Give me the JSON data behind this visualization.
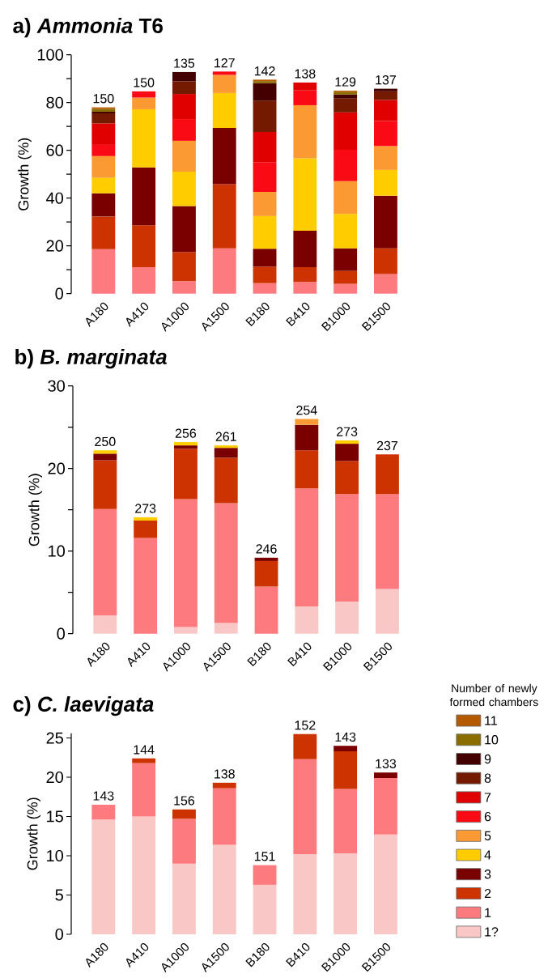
{
  "chart_data": [
    {
      "type": "bar",
      "stacked": true,
      "title": "a) *Ammonia* T6",
      "ylabel": "Growth (%)",
      "legend": false,
      "categories": [
        "A180",
        "A410",
        "A1000",
        "A1500",
        "B180",
        "B410",
        "B1000",
        "B1500"
      ],
      "ylim": [
        0,
        100
      ],
      "yticks": [
        0,
        {
          "value": 10,
          "label": null
        },
        20,
        {
          "value": 30,
          "label": null
        },
        40,
        {
          "value": 50,
          "label": null
        },
        60,
        {
          "value": 70,
          "label": null
        },
        80,
        {
          "value": 90,
          "label": null
        },
        100
      ],
      "series": [
        {
          "color": "#fd7a7f",
          "values": [
            18.6,
            11.1,
            5.2,
            19.0,
            4.4,
            4.9,
            4.1,
            8.2
          ]
        },
        {
          "color": "#cc3300",
          "values": [
            13.7,
            17.5,
            12.2,
            26.8,
            6.9,
            6.2,
            5.4,
            10.8
          ]
        },
        {
          "color": "#7a0000",
          "values": [
            9.7,
            24.3,
            19.3,
            23.6,
            7.5,
            15.2,
            9.5,
            22.0
          ]
        },
        {
          "color": "#ffcc00",
          "values": [
            6.5,
            24.3,
            14.4,
            14.6,
            13.7,
            30.4,
            14.4,
            10.8
          ]
        },
        {
          "color": "#fb9933",
          "values": [
            9.1,
            4.9,
            12.9,
            7.6,
            10.1,
            22.2,
            13.7,
            10.0
          ]
        },
        {
          "color": "#fa0a14",
          "values": [
            4.7,
            2.6,
            9.1,
            1.4,
            12.5,
            6.2,
            13.1,
            10.5
          ]
        },
        {
          "color": "#e10000",
          "values": [
            9.0,
            null,
            10.5,
            null,
            12.6,
            3.3,
            15.7,
            8.8
          ]
        },
        {
          "color": "#731a00",
          "values": [
            4.2,
            null,
            5.3,
            null,
            13.1,
            null,
            5.8,
            3.6
          ]
        },
        {
          "color": "#440000",
          "values": [
            0.7,
            null,
            3.9,
            null,
            7.3,
            null,
            1.7,
            1.1
          ]
        },
        {
          "color": "#8a6d00",
          "values": [
            1.1,
            null,
            null,
            null,
            0.9,
            null,
            1.0,
            null
          ]
        },
        {
          "color": "#b45a00",
          "values": [
            0.7,
            null,
            null,
            null,
            0.6,
            null,
            0.6,
            null
          ]
        }
      ],
      "annotations": [
        {
          "text": "150",
          "x": "A180",
          "y": 78.0
        },
        {
          "text": "150",
          "x": "A410",
          "y": 84.7
        },
        {
          "text": "135",
          "x": "A1000",
          "y": 92.8
        },
        {
          "text": "127",
          "x": "A1500",
          "y": 93.0
        },
        {
          "text": "142",
          "x": "B180",
          "y": 89.6
        },
        {
          "text": "138",
          "x": "B410",
          "y": 88.4
        },
        {
          "text": "129",
          "x": "B1000",
          "y": 85.0
        },
        {
          "text": "137",
          "x": "B1500",
          "y": 85.8
        }
      ]
    },
    {
      "type": "bar",
      "stacked": true,
      "title": "b) *B. marginata*",
      "ylabel": "Growth (%)",
      "legend": false,
      "categories": [
        "A180",
        "A410",
        "A1000",
        "A1500",
        "B180",
        "B410",
        "B1000",
        "B1500"
      ],
      "ylim": [
        0,
        30
      ],
      "yticks": [
        0,
        {
          "value": 5,
          "label": null
        },
        10,
        {
          "value": 15,
          "label": null
        },
        20,
        {
          "value": 25,
          "label": null
        },
        30
      ],
      "series": [
        {
          "color": "#f9c8c6",
          "values": [
            2.2,
            null,
            0.8,
            1.3,
            null,
            3.3,
            3.9,
            5.4
          ]
        },
        {
          "color": "#fd7a7f",
          "values": [
            12.9,
            11.6,
            15.5,
            14.5,
            5.7,
            14.3,
            13.0,
            11.5
          ]
        },
        {
          "color": "#cc3300",
          "values": [
            5.9,
            2.1,
            6.1,
            5.5,
            3.1,
            4.6,
            4.0,
            4.8
          ]
        },
        {
          "color": "#7a0000",
          "values": [
            0.8,
            null,
            0.4,
            1.2,
            0.4,
            3.1,
            2.1,
            null
          ]
        },
        {
          "color": "#ffcc00",
          "values": [
            0.4,
            0.4,
            0.4,
            0.3,
            null,
            null,
            0.4,
            null
          ]
        },
        {
          "color": "#fb9933",
          "values": [
            null,
            null,
            null,
            null,
            null,
            0.7,
            null,
            null
          ]
        }
      ],
      "annotations": [
        {
          "text": "250",
          "x": "A180",
          "y": 22.2
        },
        {
          "text": "273",
          "x": "A410",
          "y": 14.1
        },
        {
          "text": "256",
          "x": "A1000",
          "y": 23.2
        },
        {
          "text": "261",
          "x": "A1500",
          "y": 22.8
        },
        {
          "text": "246",
          "x": "B180",
          "y": 9.2
        },
        {
          "text": "254",
          "x": "B410",
          "y": 26.0
        },
        {
          "text": "273",
          "x": "B1000",
          "y": 23.4
        },
        {
          "text": "237",
          "x": "B1500",
          "y": 21.7
        }
      ]
    },
    {
      "type": "bar",
      "stacked": true,
      "title": "c) *C. laevigata*",
      "ylabel": "Growth (%)",
      "legend": "right",
      "legend_title": "Number of newly formed chambers",
      "categories": [
        "A180",
        "A410",
        "A1000",
        "A1500",
        "B180",
        "B410",
        "B1000",
        "B1500"
      ],
      "ylim": [
        0,
        25.6
      ],
      "yticks": [
        0,
        5,
        10,
        15,
        20,
        25
      ],
      "series": [
        {
          "name": "1?",
          "color": "#f9c8c6",
          "values": [
            14.6,
            15.0,
            9.0,
            11.4,
            6.3,
            10.2,
            10.3,
            12.7
          ]
        },
        {
          "name": "1",
          "color": "#fd7a7f",
          "values": [
            1.9,
            6.8,
            5.7,
            7.2,
            2.5,
            12.1,
            8.2,
            7.2
          ]
        },
        {
          "name": "2",
          "color": "#cc3300",
          "values": [
            null,
            0.6,
            1.2,
            0.7,
            null,
            3.2,
            4.8,
            null
          ]
        },
        {
          "name": "3",
          "color": "#7a0000",
          "values": [
            null,
            null,
            null,
            null,
            null,
            null,
            0.7,
            0.7
          ]
        },
        {
          "name": "4",
          "color": "#ffcc00",
          "values": [
            null,
            null,
            null,
            null,
            null,
            null,
            null,
            null
          ]
        },
        {
          "name": "5",
          "color": "#fb9933",
          "values": [
            null,
            null,
            null,
            null,
            null,
            null,
            null,
            null
          ]
        },
        {
          "name": "6",
          "color": "#fa0a14",
          "values": [
            null,
            null,
            null,
            null,
            null,
            null,
            null,
            null
          ]
        },
        {
          "name": "7",
          "color": "#e10000",
          "values": [
            null,
            null,
            null,
            null,
            null,
            null,
            null,
            null
          ]
        },
        {
          "name": "8",
          "color": "#731a00",
          "values": [
            null,
            null,
            null,
            null,
            null,
            null,
            null,
            null
          ]
        },
        {
          "name": "9",
          "color": "#440000",
          "values": [
            null,
            null,
            null,
            null,
            null,
            null,
            null,
            null
          ]
        },
        {
          "name": "10",
          "color": "#8a6d00",
          "values": [
            null,
            null,
            null,
            null,
            null,
            null,
            null,
            null
          ]
        },
        {
          "name": "11",
          "color": "#b45a00",
          "values": [
            null,
            null,
            null,
            null,
            null,
            null,
            null,
            null
          ]
        }
      ],
      "annotations": [
        {
          "text": "143",
          "x": "A180",
          "y": 16.5
        },
        {
          "text": "144",
          "x": "A410",
          "y": 22.4
        },
        {
          "text": "156",
          "x": "A1000",
          "y": 15.9
        },
        {
          "text": "138",
          "x": "A1500",
          "y": 19.3
        },
        {
          "text": "151",
          "x": "B180",
          "y": 8.8
        },
        {
          "text": "152",
          "x": "B410",
          "y": 25.5
        },
        {
          "text": "143",
          "x": "B1000",
          "y": 24.0
        },
        {
          "text": "133",
          "x": "B1500",
          "y": 20.6
        }
      ]
    }
  ]
}
